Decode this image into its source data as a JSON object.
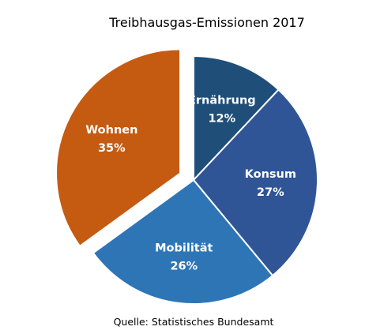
{
  "chart_data": {
    "type": "pie",
    "title": "Treibhausgas-Emissionen 2017",
    "source": "Quelle: Statistisches Bundesamt",
    "start_angle_deg": 0,
    "direction": "clockwise",
    "exploded": "Wohnen",
    "unit": "%",
    "slices": [
      {
        "name": "Ernährung",
        "label": "12%",
        "value": 12,
        "color": "#1f4e79"
      },
      {
        "name": "Konsum",
        "label": "27%",
        "value": 27,
        "color": "#2f5597"
      },
      {
        "name": "Mobilität",
        "label": "26%",
        "value": 26,
        "color": "#2e75b6"
      },
      {
        "name": "Wohnen",
        "label": "35%",
        "value": 35,
        "color": "#c55a11"
      }
    ]
  }
}
